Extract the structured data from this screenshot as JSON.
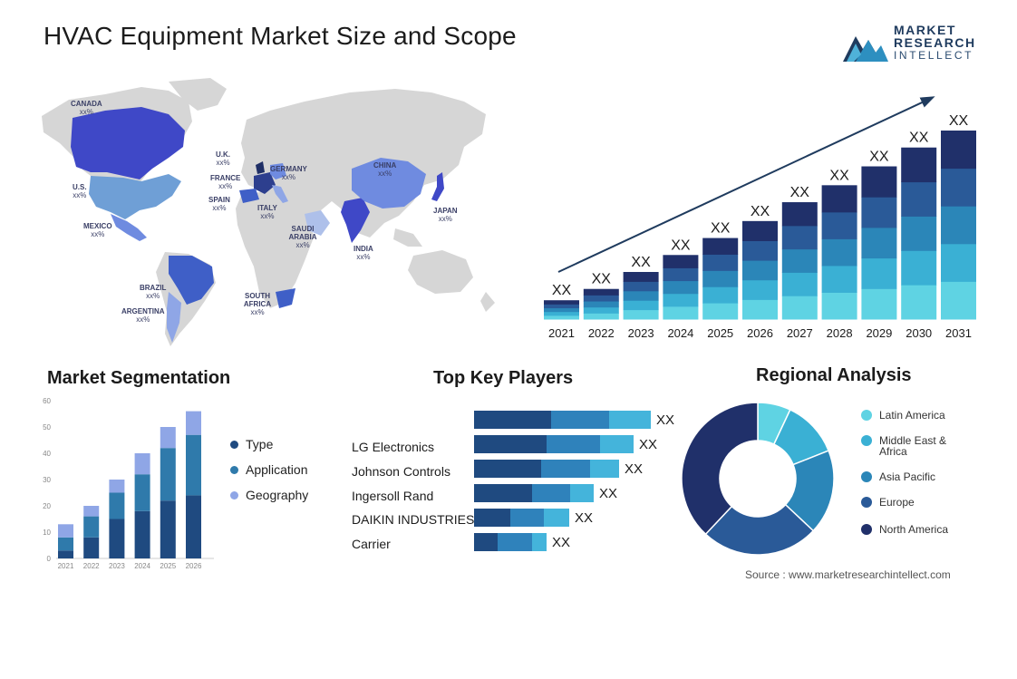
{
  "title": "HVAC Equipment Market Size and Scope",
  "logo": {
    "line1": "MARKET",
    "line2": "RESEARCH",
    "line3": "INTELLECT"
  },
  "colors": {
    "c1": "#1f2f66",
    "c2": "#24508e",
    "c3": "#2b79b3",
    "c4": "#3aa2cf",
    "c5": "#5fcde0",
    "map_base": "#d6d6d6",
    "map_dark": "#1f2f66",
    "map_mid": "#3f48c7",
    "map_light": "#6f8be0",
    "map_pale": "#8fa6e6"
  },
  "map": {
    "labels": [
      {
        "name": "CANADA",
        "value": "xx%"
      },
      {
        "name": "U.S.",
        "value": "xx%"
      },
      {
        "name": "MEXICO",
        "value": "xx%"
      },
      {
        "name": "BRAZIL",
        "value": "xx%"
      },
      {
        "name": "ARGENTINA",
        "value": "xx%"
      },
      {
        "name": "U.K.",
        "value": "xx%"
      },
      {
        "name": "FRANCE",
        "value": "xx%"
      },
      {
        "name": "SPAIN",
        "value": "xx%"
      },
      {
        "name": "GERMANY",
        "value": "xx%"
      },
      {
        "name": "ITALY",
        "value": "xx%"
      },
      {
        "name": "SAUDI ARABIA",
        "value": "xx%"
      },
      {
        "name": "SOUTH AFRICA",
        "value": "xx%"
      },
      {
        "name": "CHINA",
        "value": "xx%"
      },
      {
        "name": "INDIA",
        "value": "xx%"
      },
      {
        "name": "JAPAN",
        "value": "xx%"
      }
    ]
  },
  "chart_data": [
    {
      "type": "bar",
      "stacked": true,
      "categories": [
        "2021",
        "2022",
        "2023",
        "2024",
        "2025",
        "2026",
        "2027",
        "2028",
        "2029",
        "2030",
        "2031"
      ],
      "totals": [
        1.0,
        1.6,
        2.5,
        3.4,
        4.3,
        5.2,
        6.2,
        7.1,
        8.1,
        9.1,
        10.0
      ],
      "segments": 5,
      "data_labels": [
        "XX",
        "XX",
        "XX",
        "XX",
        "XX",
        "XX",
        "XX",
        "XX",
        "XX",
        "XX",
        "XX"
      ],
      "trend_arrow": true
    },
    {
      "type": "bar",
      "stacked": true,
      "title": "Market Segmentation",
      "categories": [
        "2021",
        "2022",
        "2023",
        "2024",
        "2025",
        "2026"
      ],
      "yticks": [
        0,
        10,
        20,
        30,
        40,
        50,
        60
      ],
      "ylim": [
        0,
        60
      ],
      "series": [
        {
          "name": "Type",
          "values": [
            3,
            8,
            15,
            18,
            22,
            24
          ]
        },
        {
          "name": "Application",
          "values": [
            5,
            8,
            10,
            14,
            20,
            23
          ]
        },
        {
          "name": "Geography",
          "values": [
            5,
            4,
            5,
            8,
            8,
            9
          ]
        }
      ],
      "legend": "right"
    },
    {
      "type": "bar",
      "orientation": "horizontal",
      "stacked": true,
      "title": "Top Key Players",
      "categories": [
        "",
        "LG Electronics",
        "Johnson Controls",
        "Ingersoll Rand",
        "DAIKIN INDUSTRIES",
        "Carrier"
      ],
      "series": [
        {
          "values": [
            85,
            80,
            74,
            64,
            40,
            26
          ]
        },
        {
          "values": [
            64,
            59,
            54,
            42,
            37,
            38
          ]
        },
        {
          "values": [
            46,
            37,
            32,
            26,
            28,
            16
          ]
        }
      ],
      "data_labels": [
        "XX",
        "XX",
        "XX",
        "XX",
        "XX",
        "XX"
      ]
    },
    {
      "type": "pie",
      "donut": true,
      "title": "Regional Analysis",
      "categories": [
        "Latin America",
        "Middle East & Africa",
        "Asia Pacific",
        "Europe",
        "North America"
      ],
      "values": [
        7,
        12,
        18,
        25,
        38
      ],
      "legend": "right"
    }
  ],
  "source": {
    "text": "Source : www.marketresearchintellect.com"
  }
}
